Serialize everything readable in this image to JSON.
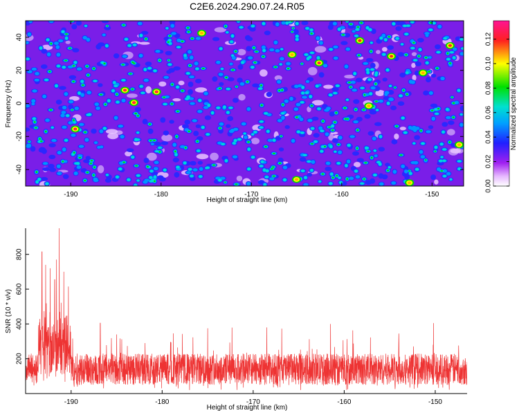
{
  "page": {
    "title": "C2E6.2024.290.07.24.R05"
  },
  "chart_data": [
    {
      "type": "heatmap",
      "xlabel": "Height of straight line (km)",
      "ylabel": "Frequency (Hz)",
      "xlim": [
        -195,
        -146.5
      ],
      "ylim": [
        -50,
        50
      ],
      "xticks": [
        -190,
        -180,
        -170,
        -160,
        -150
      ],
      "yticks": [
        -40,
        -20,
        0,
        20,
        40
      ],
      "colorbar": {
        "label": "Normalized spectral amplitude",
        "range": [
          0,
          0.135
        ],
        "ticks": [
          "0.00",
          "0.02",
          "0.04",
          "0.06",
          "0.08",
          "0.10",
          "0.12"
        ],
        "colors": [
          "#ffffff",
          "#e6b8ff",
          "#a020f0",
          "#2020ff",
          "#00a0ff",
          "#00e0d0",
          "#00e000",
          "#ffff00",
          "#ff2020",
          "#ff1493"
        ]
      },
      "background_color": "#7a1ee8",
      "hotspots": [
        {
          "x": -183.0,
          "y": 0.5,
          "v": 0.13
        },
        {
          "x": -184.0,
          "y": 8.0,
          "v": 0.12
        },
        {
          "x": -180.5,
          "y": 7.0,
          "v": 0.13
        },
        {
          "x": -189.5,
          "y": -15.5,
          "v": 0.12
        },
        {
          "x": -162.5,
          "y": 24.5,
          "v": 0.12
        },
        {
          "x": -158.0,
          "y": 38.0,
          "v": 0.11
        },
        {
          "x": -154.5,
          "y": 28.5,
          "v": 0.11
        },
        {
          "x": -148.0,
          "y": 35.0,
          "v": 0.11
        },
        {
          "x": -165.5,
          "y": 29.5,
          "v": 0.1
        },
        {
          "x": -151.0,
          "y": 18.5,
          "v": 0.1
        },
        {
          "x": -165.0,
          "y": -46.0,
          "v": 0.1
        },
        {
          "x": -152.5,
          "y": -48.0,
          "v": 0.1
        },
        {
          "x": -175.5,
          "y": 42.5,
          "v": 0.09
        },
        {
          "x": -157.0,
          "y": -1.5,
          "v": 0.09
        },
        {
          "x": -147.0,
          "y": -25.0,
          "v": 0.09
        }
      ]
    },
    {
      "type": "line",
      "xlabel": "Height of straight line (km)",
      "ylabel": "SNR (10 * v/v)",
      "xlim": [
        -195,
        -146.5
      ],
      "ylim": [
        0,
        950
      ],
      "xticks": [
        -190,
        -180,
        -170,
        -160,
        -150
      ],
      "yticks": [
        200,
        400,
        600,
        800
      ],
      "series": [
        {
          "color": "#ee3333",
          "baseline_mean": 140,
          "baseline_spread": 90,
          "peaks": [
            {
              "x": -193.2,
              "y": 815
            },
            {
              "x": -192.8,
              "y": 740
            },
            {
              "x": -192.3,
              "y": 720
            },
            {
              "x": -191.8,
              "y": 655
            },
            {
              "x": -191.6,
              "y": 770
            },
            {
              "x": -191.3,
              "y": 950
            },
            {
              "x": -190.8,
              "y": 700
            },
            {
              "x": -190.3,
              "y": 615
            },
            {
              "x": -186.8,
              "y": 405
            },
            {
              "x": -175.0,
              "y": 375
            },
            {
              "x": -168.5,
              "y": 380
            },
            {
              "x": -161.5,
              "y": 400
            },
            {
              "x": -150.2,
              "y": 405
            },
            {
              "x": -185.0,
              "y": 340
            },
            {
              "x": -154.0,
              "y": 345
            }
          ]
        }
      ]
    }
  ]
}
